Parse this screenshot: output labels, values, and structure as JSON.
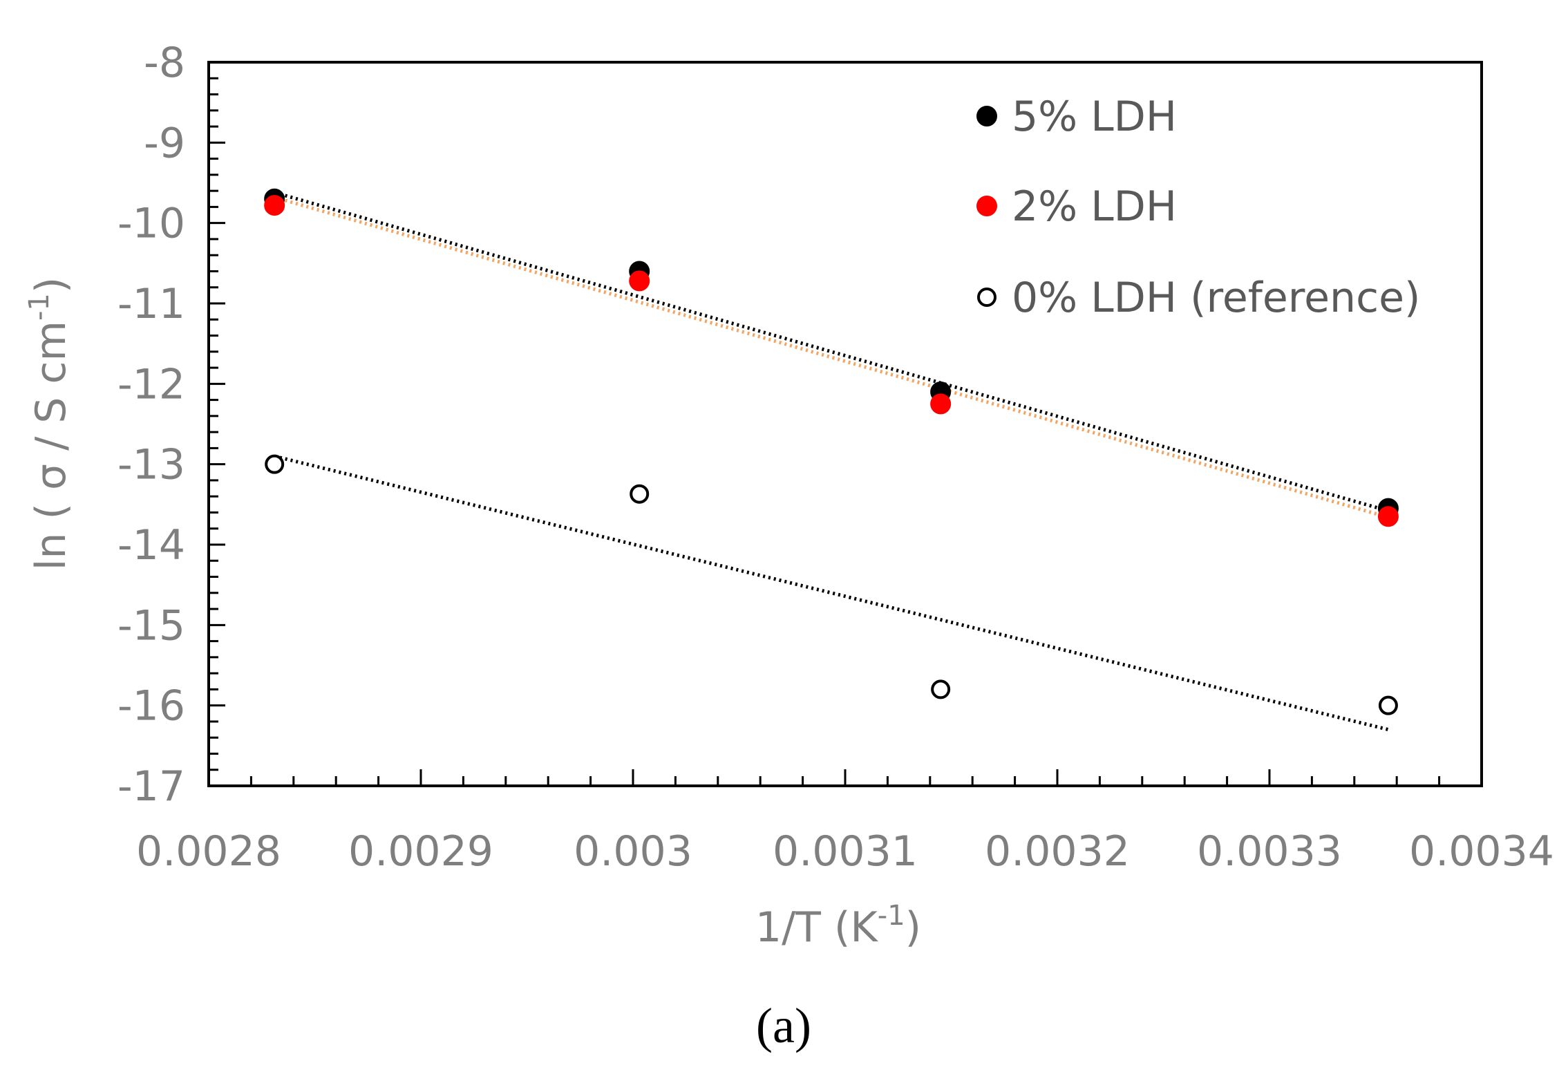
{
  "chart_data": {
    "type": "scatter",
    "title": "",
    "xlabel": "1/T (K",
    "xlabel_sup": "-1",
    "xlabel_end": ")",
    "ylabel": "ln ( σ / S cm",
    "ylabel_sup": "-1",
    "ylabel_end": ")",
    "xlim": [
      0.0028,
      0.0034
    ],
    "ylim": [
      -17,
      -8
    ],
    "x_ticks": [
      0.0028,
      0.0029,
      0.003,
      0.0031,
      0.0032,
      0.0033,
      0.0034
    ],
    "x_tick_labels": [
      "0.0028",
      "0.0029",
      "0.003",
      "0.0031",
      "0.0032",
      "0.0033",
      "0.0034"
    ],
    "y_ticks": [
      -8,
      -9,
      -10,
      -11,
      -12,
      -13,
      -14,
      -15,
      -16,
      -17
    ],
    "y_tick_labels": [
      "-8",
      "-9",
      "-10",
      "-11",
      "-12",
      "-13",
      "-14",
      "-15",
      "-16",
      "-17"
    ],
    "grid": false,
    "legend_position": "top-right",
    "series": [
      {
        "name": "5% LDH",
        "marker": "filled-circle",
        "color": "#000000",
        "x": [
          0.002831,
          0.003003,
          0.003145,
          0.003356
        ],
        "y": [
          -9.7,
          -10.6,
          -12.1,
          -13.55
        ],
        "trendline": {
          "color": "#000000",
          "x": [
            0.002831,
            0.003356
          ],
          "y": [
            -9.62,
            -13.58
          ]
        }
      },
      {
        "name": "2% LDH",
        "marker": "filled-circle",
        "color": "#ff0000",
        "x": [
          0.002831,
          0.003003,
          0.003145,
          0.003356
        ],
        "y": [
          -9.78,
          -10.72,
          -12.25,
          -13.65
        ],
        "trendline": {
          "color": "#f4a460",
          "x": [
            0.002831,
            0.003356
          ],
          "y": [
            -9.68,
            -13.66
          ]
        }
      },
      {
        "name": "0% LDH (reference)",
        "marker": "open-circle",
        "color": "#000000",
        "x": [
          0.002831,
          0.003003,
          0.003145,
          0.003356
        ],
        "y": [
          -13.0,
          -13.37,
          -15.8,
          -16.0
        ],
        "trendline": {
          "color": "#000000",
          "x": [
            0.002831,
            0.003356
          ],
          "y": [
            -12.9,
            -16.3
          ]
        }
      }
    ]
  },
  "caption": "(a)"
}
